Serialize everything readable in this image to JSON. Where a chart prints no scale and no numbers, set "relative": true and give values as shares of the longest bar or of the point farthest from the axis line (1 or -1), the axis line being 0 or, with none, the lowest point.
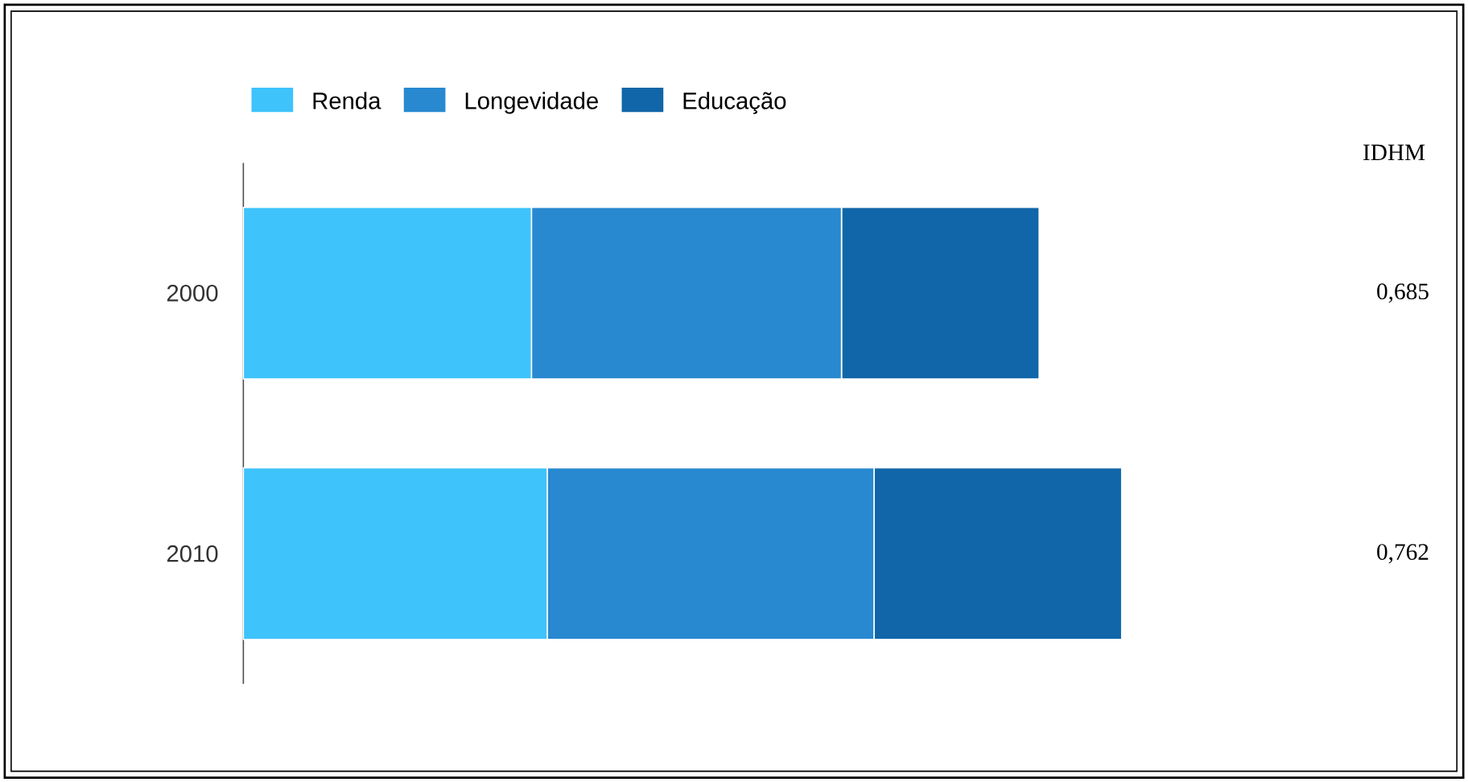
{
  "chart_data": {
    "type": "bar",
    "orientation": "horizontal",
    "stacked": true,
    "relative": true,
    "categories": [
      "2000",
      "2010"
    ],
    "series": [
      {
        "name": "Renda",
        "color": "#3ec3fb",
        "values": [
          0.328,
          0.346
        ]
      },
      {
        "name": "Longevidade",
        "color": "#2889d0",
        "values": [
          0.353,
          0.372
        ]
      },
      {
        "name": "Educação",
        "color": "#1066a8",
        "values": [
          0.225,
          0.282
        ]
      }
    ],
    "legend": "top left",
    "annotations": [
      "IDHM",
      "0,685",
      "0,762"
    ]
  }
}
